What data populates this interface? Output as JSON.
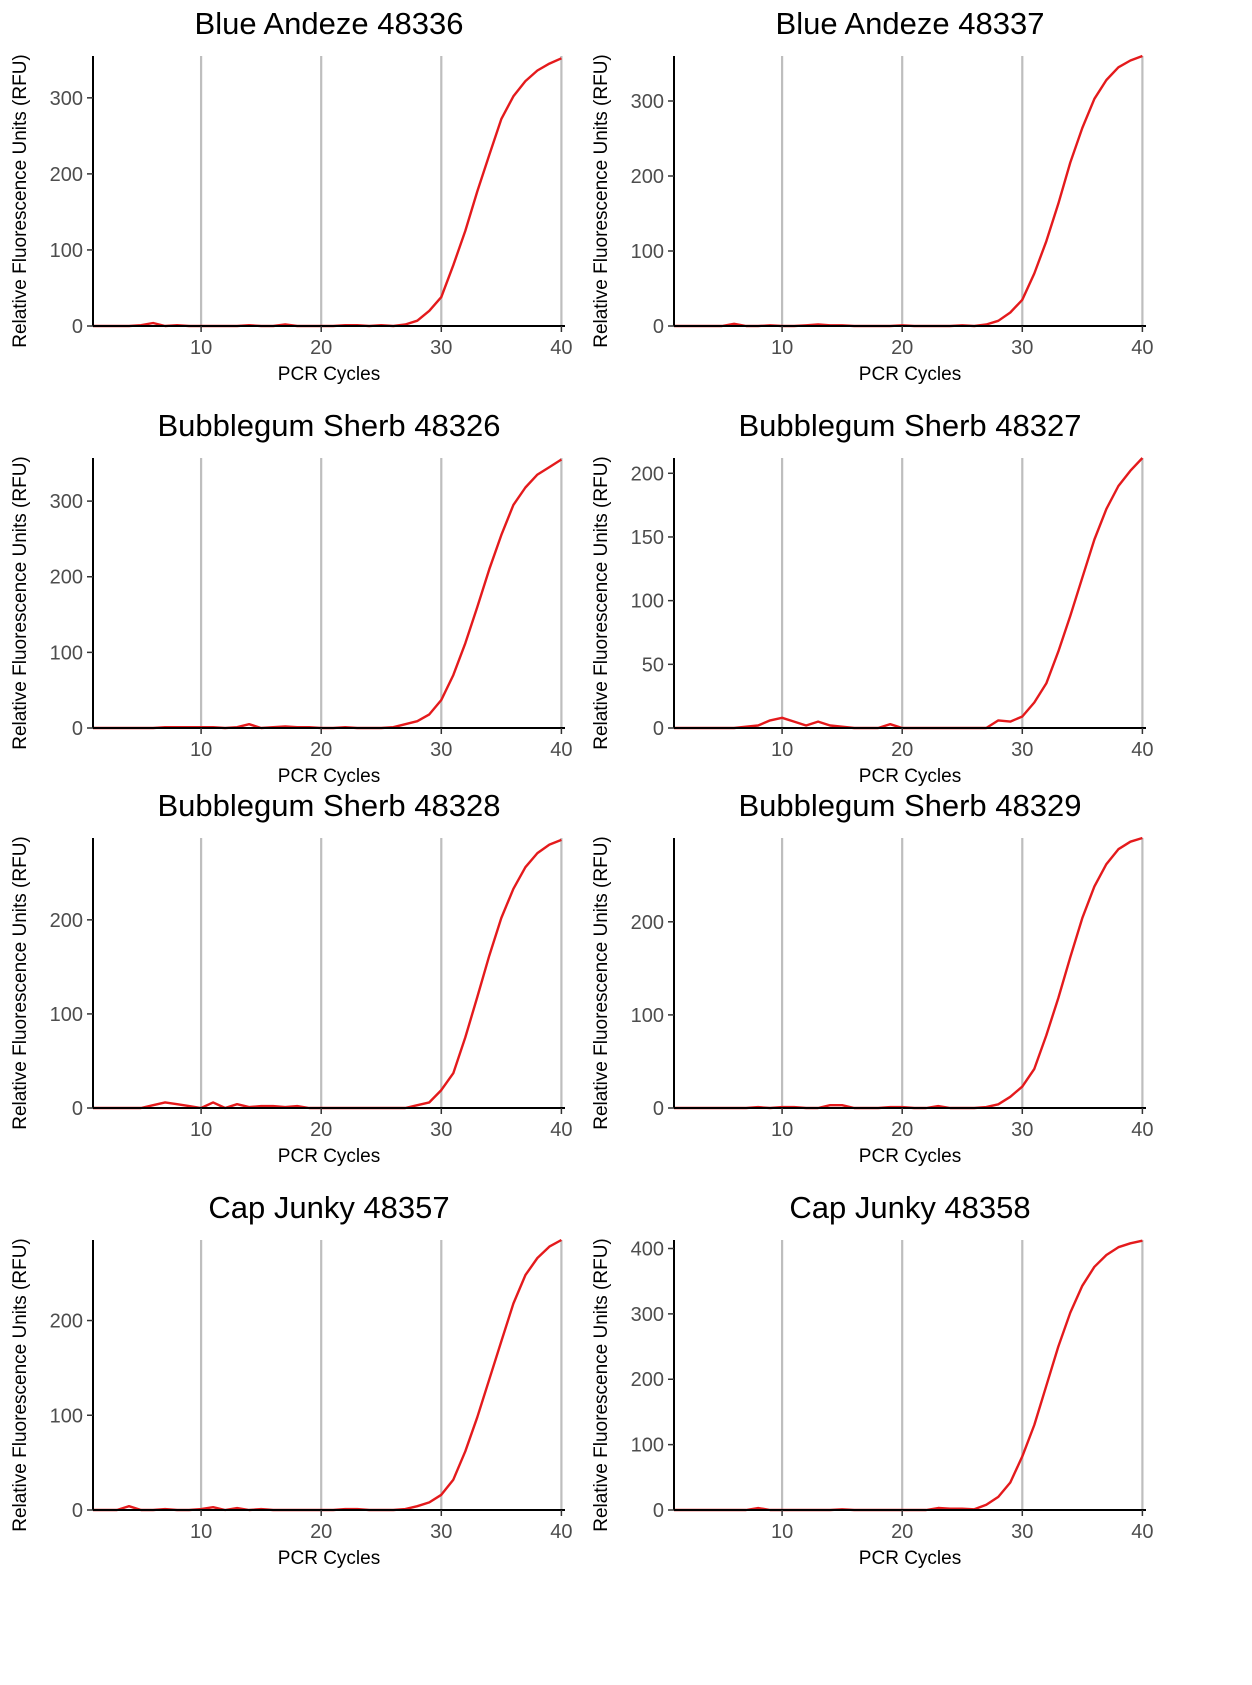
{
  "chart_data": [
    {
      "type": "line",
      "title": "Blue Andeze 48336",
      "xlabel": "PCR Cycles",
      "ylabel": "Relative Fluorescence Units (RFU)",
      "xlim": [
        1,
        40.3
      ],
      "ylim": [
        0,
        355
      ],
      "xticks": [
        10,
        20,
        30,
        40
      ],
      "yticks": [
        0,
        100,
        200,
        300
      ],
      "vlines": [
        10,
        20,
        30,
        40
      ],
      "line_color": "#e41a1c",
      "x": [
        1,
        2,
        3,
        4,
        5,
        6,
        7,
        8,
        9,
        10,
        11,
        12,
        13,
        14,
        15,
        16,
        17,
        18,
        19,
        20,
        21,
        22,
        23,
        24,
        25,
        26,
        27,
        28,
        29,
        30,
        31,
        32,
        33,
        34,
        35,
        36,
        37,
        38,
        39,
        40
      ],
      "values": [
        0,
        0,
        0,
        0,
        1,
        4,
        0,
        1,
        0,
        0,
        0,
        0,
        0,
        1,
        0,
        0,
        2,
        0,
        0,
        0,
        0,
        1,
        1,
        0,
        1,
        0,
        2,
        7,
        20,
        38,
        80,
        125,
        177,
        225,
        272,
        302,
        322,
        336,
        345,
        352
      ]
    },
    {
      "type": "line",
      "title": "Blue Andeze 48337",
      "xlabel": "PCR Cycles",
      "ylabel": "Relative Fluorescence Units (RFU)",
      "xlim": [
        1,
        40.3
      ],
      "ylim": [
        0,
        360
      ],
      "xticks": [
        10,
        20,
        30,
        40
      ],
      "yticks": [
        0,
        100,
        200,
        300
      ],
      "vlines": [
        10,
        20,
        30,
        40
      ],
      "line_color": "#e41a1c",
      "x": [
        1,
        2,
        3,
        4,
        5,
        6,
        7,
        8,
        9,
        10,
        11,
        12,
        13,
        14,
        15,
        16,
        17,
        18,
        19,
        20,
        21,
        22,
        23,
        24,
        25,
        26,
        27,
        28,
        29,
        30,
        31,
        32,
        33,
        34,
        35,
        36,
        37,
        38,
        39,
        40
      ],
      "values": [
        0,
        0,
        0,
        0,
        0,
        3,
        0,
        0,
        1,
        0,
        0,
        1,
        2,
        1,
        1,
        0,
        0,
        0,
        0,
        1,
        0,
        0,
        0,
        0,
        1,
        0,
        2,
        7,
        18,
        35,
        70,
        113,
        163,
        218,
        264,
        303,
        328,
        345,
        354,
        360
      ]
    },
    {
      "type": "line",
      "title": "Bubblegum Sherb 48326",
      "xlabel": "PCR Cycles",
      "ylabel": "Relative Fluorescence Units (RFU)",
      "xlim": [
        1,
        40.3
      ],
      "ylim": [
        0,
        357
      ],
      "xticks": [
        10,
        20,
        30,
        40
      ],
      "yticks": [
        0,
        100,
        200,
        300
      ],
      "vlines": [
        10,
        20,
        30,
        40
      ],
      "line_color": "#e41a1c",
      "x": [
        1,
        2,
        3,
        4,
        5,
        6,
        7,
        8,
        9,
        10,
        11,
        12,
        13,
        14,
        15,
        16,
        17,
        18,
        19,
        20,
        21,
        22,
        23,
        24,
        25,
        26,
        27,
        28,
        29,
        30,
        31,
        32,
        33,
        34,
        35,
        36,
        37,
        38,
        39,
        40
      ],
      "values": [
        0,
        0,
        0,
        0,
        0,
        0,
        1,
        1,
        1,
        1,
        1,
        0,
        1,
        5,
        0,
        1,
        2,
        1,
        1,
        0,
        0,
        1,
        0,
        0,
        0,
        1,
        5,
        9,
        18,
        37,
        70,
        112,
        160,
        210,
        255,
        295,
        318,
        335,
        345,
        355
      ]
    },
    {
      "type": "line",
      "title": "Bubblegum Sherb 48327",
      "xlabel": "PCR Cycles",
      "ylabel": "Relative Fluorescence Units (RFU)",
      "xlim": [
        1,
        40.3
      ],
      "ylim": [
        0,
        212
      ],
      "xticks": [
        10,
        20,
        30,
        40
      ],
      "yticks": [
        0,
        50,
        100,
        150,
        200
      ],
      "vlines": [
        10,
        20,
        30,
        40
      ],
      "line_color": "#e41a1c",
      "x": [
        1,
        2,
        3,
        4,
        5,
        6,
        7,
        8,
        9,
        10,
        11,
        12,
        13,
        14,
        15,
        16,
        17,
        18,
        19,
        20,
        21,
        22,
        23,
        24,
        25,
        26,
        27,
        28,
        29,
        30,
        31,
        32,
        33,
        34,
        35,
        36,
        37,
        38,
        39,
        40
      ],
      "values": [
        0,
        0,
        0,
        0,
        0,
        0,
        1,
        2,
        6,
        8,
        5,
        2,
        5,
        2,
        1,
        0,
        0,
        0,
        3,
        0,
        0,
        0,
        0,
        0,
        0,
        0,
        0,
        6,
        5,
        9,
        20,
        35,
        60,
        88,
        118,
        148,
        172,
        190,
        202,
        212
      ]
    },
    {
      "type": "line",
      "title": "Bubblegum Sherb 48328",
      "xlabel": "PCR Cycles",
      "ylabel": "Relative Fluorescence Units (RFU)",
      "xlim": [
        1,
        40.3
      ],
      "ylim": [
        0,
        287
      ],
      "xticks": [
        10,
        20,
        30,
        40
      ],
      "yticks": [
        0,
        100,
        200
      ],
      "vlines": [
        10,
        20,
        30,
        40
      ],
      "line_color": "#e41a1c",
      "x": [
        1,
        2,
        3,
        4,
        5,
        6,
        7,
        8,
        9,
        10,
        11,
        12,
        13,
        14,
        15,
        16,
        17,
        18,
        19,
        20,
        21,
        22,
        23,
        24,
        25,
        26,
        27,
        28,
        29,
        30,
        31,
        32,
        33,
        34,
        35,
        36,
        37,
        38,
        39,
        40
      ],
      "values": [
        0,
        0,
        0,
        0,
        0,
        3,
        6,
        4,
        2,
        0,
        6,
        0,
        4,
        1,
        2,
        2,
        1,
        2,
        0,
        0,
        0,
        0,
        0,
        0,
        0,
        0,
        0,
        3,
        6,
        19,
        37,
        75,
        118,
        162,
        202,
        233,
        256,
        271,
        280,
        285
      ]
    },
    {
      "type": "line",
      "title": "Bubblegum Sherb 48329",
      "xlabel": "PCR Cycles",
      "ylabel": "Relative Fluorescence Units (RFU)",
      "xlim": [
        1,
        40.3
      ],
      "ylim": [
        0,
        290
      ],
      "xticks": [
        10,
        20,
        30,
        40
      ],
      "yticks": [
        0,
        100,
        200
      ],
      "vlines": [
        10,
        20,
        30,
        40
      ],
      "line_color": "#e41a1c",
      "x": [
        1,
        2,
        3,
        4,
        5,
        6,
        7,
        8,
        9,
        10,
        11,
        12,
        13,
        14,
        15,
        16,
        17,
        18,
        19,
        20,
        21,
        22,
        23,
        24,
        25,
        26,
        27,
        28,
        29,
        30,
        31,
        32,
        33,
        34,
        35,
        36,
        37,
        38,
        39,
        40
      ],
      "values": [
        0,
        0,
        0,
        0,
        0,
        0,
        0,
        1,
        0,
        1,
        1,
        0,
        0,
        3,
        3,
        0,
        0,
        0,
        1,
        1,
        0,
        0,
        2,
        0,
        0,
        0,
        1,
        4,
        12,
        23,
        42,
        78,
        118,
        162,
        204,
        238,
        262,
        278,
        286,
        290
      ]
    },
    {
      "type": "line",
      "title": "Cap Junky 48357",
      "xlabel": "PCR Cycles",
      "ylabel": "Relative Fluorescence Units (RFU)",
      "xlim": [
        1,
        40.3
      ],
      "ylim": [
        0,
        285
      ],
      "xticks": [
        10,
        20,
        30,
        40
      ],
      "yticks": [
        0,
        100,
        200
      ],
      "vlines": [
        10,
        20,
        30,
        40
      ],
      "line_color": "#e41a1c",
      "x": [
        1,
        2,
        3,
        4,
        5,
        6,
        7,
        8,
        9,
        10,
        11,
        12,
        13,
        14,
        15,
        16,
        17,
        18,
        19,
        20,
        21,
        22,
        23,
        24,
        25,
        26,
        27,
        28,
        29,
        30,
        31,
        32,
        33,
        34,
        35,
        36,
        37,
        38,
        39,
        40
      ],
      "values": [
        0,
        0,
        0,
        4,
        0,
        0,
        1,
        0,
        0,
        1,
        3,
        0,
        2,
        0,
        1,
        0,
        0,
        0,
        0,
        0,
        0,
        1,
        1,
        0,
        0,
        0,
        1,
        4,
        8,
        16,
        32,
        62,
        98,
        138,
        178,
        218,
        248,
        266,
        278,
        285
      ]
    },
    {
      "type": "line",
      "title": "Cap Junky 48358",
      "xlabel": "PCR Cycles",
      "ylabel": "Relative Fluorescence Units (RFU)",
      "xlim": [
        1,
        40.3
      ],
      "ylim": [
        0,
        413
      ],
      "xticks": [
        10,
        20,
        30,
        40
      ],
      "yticks": [
        0,
        100,
        200,
        300,
        400
      ],
      "vlines": [
        10,
        20,
        30,
        40
      ],
      "line_color": "#e41a1c",
      "x": [
        1,
        2,
        3,
        4,
        5,
        6,
        7,
        8,
        9,
        10,
        11,
        12,
        13,
        14,
        15,
        16,
        17,
        18,
        19,
        20,
        21,
        22,
        23,
        24,
        25,
        26,
        27,
        28,
        29,
        30,
        31,
        32,
        33,
        34,
        35,
        36,
        37,
        38,
        39,
        40
      ],
      "values": [
        0,
        0,
        0,
        0,
        0,
        0,
        0,
        3,
        0,
        0,
        0,
        0,
        0,
        0,
        1,
        0,
        0,
        0,
        0,
        0,
        0,
        0,
        3,
        2,
        2,
        1,
        8,
        20,
        42,
        82,
        130,
        190,
        250,
        302,
        343,
        372,
        390,
        402,
        408,
        412
      ]
    }
  ]
}
